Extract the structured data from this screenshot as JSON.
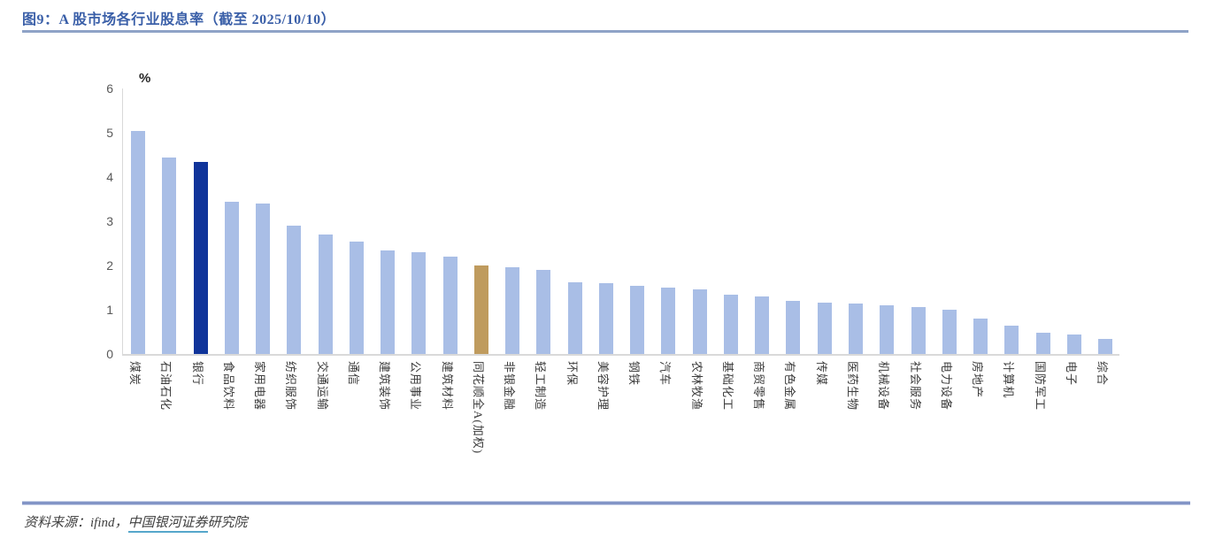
{
  "figure": {
    "title": "图9：A 股市场各行业股息率（截至 2025/10/10）",
    "source_prefix": "资料来源：ifind，",
    "source_link": "中国银河证券",
    "source_suffix": "研究院"
  },
  "chart_data": {
    "type": "bar",
    "title": "A 股市场各行业股息率（截至 2025/10/10）",
    "xlabel": "",
    "ylabel": "%",
    "unit_label": "%",
    "ylim": [
      0,
      6
    ],
    "y_ticks": [
      0,
      1,
      2,
      3,
      4,
      5,
      6
    ],
    "grid": false,
    "legend": false,
    "bar_color_default": "#A9BEE6",
    "bar_color_overrides": {
      "银行": "#10349A",
      "同花顺全A(加权)": "#BF9B5E"
    },
    "categories": [
      "煤炭",
      "石油石化",
      "银行",
      "食品饮料",
      "家用电器",
      "纺织服饰",
      "交通运输",
      "通信",
      "建筑装饰",
      "公用事业",
      "建筑材料",
      "同花顺全A(加权)",
      "非银金融",
      "轻工制造",
      "环保",
      "美容护理",
      "钢铁",
      "汽车",
      "农林牧渔",
      "基础化工",
      "商贸零售",
      "有色金属",
      "传媒",
      "医药生物",
      "机械设备",
      "社会服务",
      "电力设备",
      "房地产",
      "计算机",
      "国防军工",
      "电子",
      "综合"
    ],
    "values": [
      5.05,
      4.45,
      4.35,
      3.45,
      3.4,
      2.9,
      2.7,
      2.55,
      2.35,
      2.3,
      2.2,
      2.0,
      1.97,
      1.9,
      1.62,
      1.6,
      1.55,
      1.5,
      1.47,
      1.35,
      1.3,
      1.2,
      1.17,
      1.15,
      1.1,
      1.07,
      1.0,
      0.8,
      0.65,
      0.48,
      0.45,
      0.35
    ]
  },
  "colors": {
    "title_text": "#3A5FA8",
    "rule_top": "#8FA3C7",
    "rule_bottom": "#8294C6",
    "axis_line": "#D9D9D9",
    "tick_text": "#595959",
    "bar_default": "#A9BEE6",
    "bar_highlight_navy": "#10349A",
    "bar_highlight_gold": "#BF9B5E",
    "link_underline": "#56A7CB"
  }
}
